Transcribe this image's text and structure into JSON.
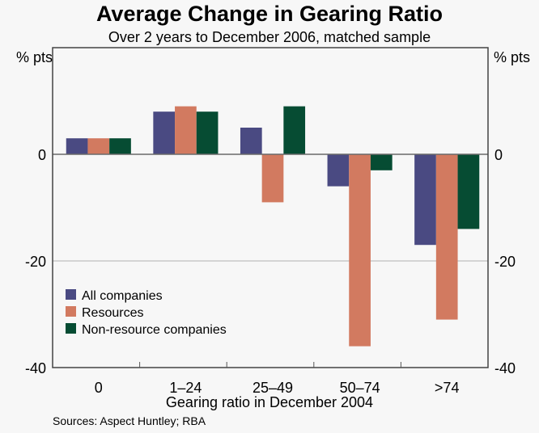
{
  "chart_data": {
    "type": "bar",
    "title": "Average Change in Gearing Ratio",
    "subtitle": "Over 2 years to December 2006, matched sample",
    "xlabel": "Gearing ratio in December 2004",
    "ylabel_left": "% pts",
    "ylabel_right": "% pts",
    "ylim": [
      -40,
      20
    ],
    "yticks": [
      0,
      -20,
      -40
    ],
    "grid": true,
    "categories": [
      "0",
      "1–24",
      "25–49",
      "50–74",
      ">74"
    ],
    "series": [
      {
        "name": "All companies",
        "color": "#4a4a82",
        "values": [
          3,
          8,
          5,
          -6,
          -17
        ]
      },
      {
        "name": "Resources",
        "color": "#d27a60",
        "values": [
          3,
          9,
          -9,
          -36,
          -31
        ]
      },
      {
        "name": "Non-resource companies",
        "color": "#064c33",
        "values": [
          3,
          8,
          9,
          -3,
          -14
        ]
      }
    ],
    "legend_position": "lower-left",
    "source": "Sources: Aspect Huntley; RBA"
  }
}
